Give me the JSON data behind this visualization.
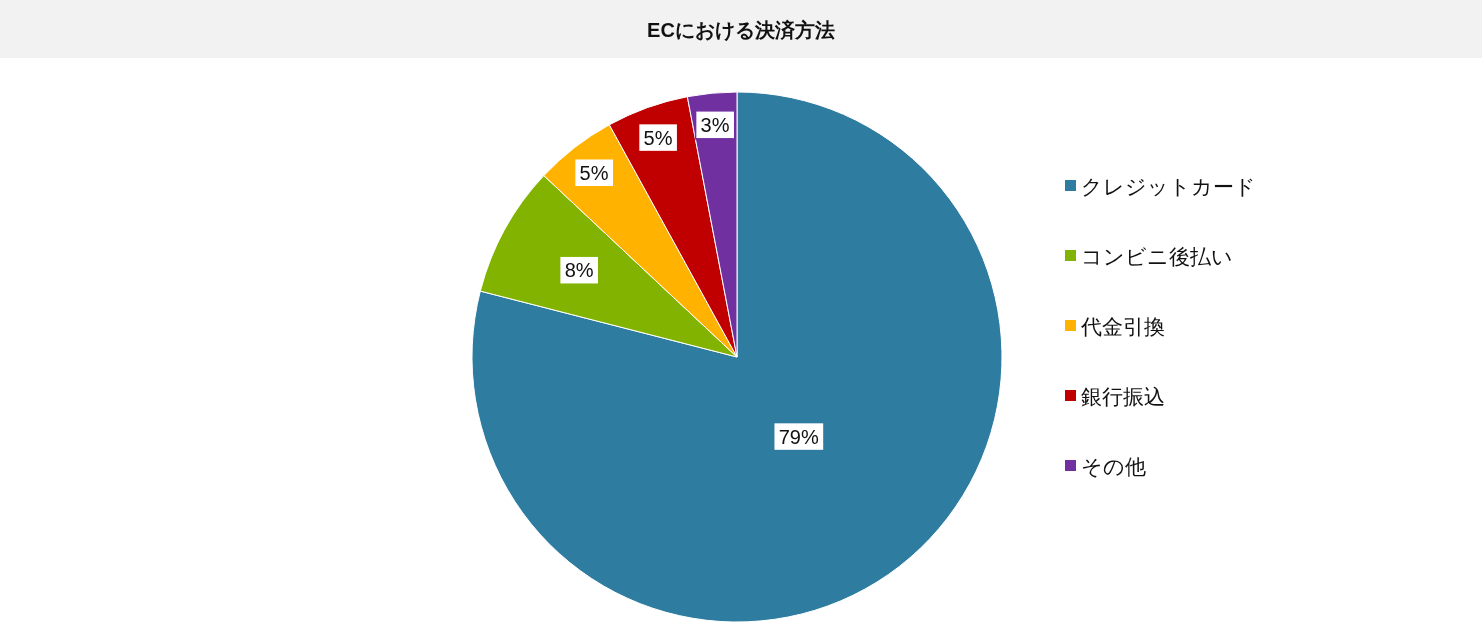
{
  "chart_data": {
    "type": "pie",
    "title": "ECにおける決済方法",
    "categories": [
      "クレジットカード",
      "コンビニ後払い",
      "代金引換",
      "銀行振込",
      "その他"
    ],
    "values": [
      79,
      8,
      5,
      5,
      3
    ],
    "colors": [
      "#2e7ca0",
      "#82b300",
      "#ffb300",
      "#c00000",
      "#7030a0"
    ],
    "value_labels": [
      "79%",
      "8%",
      "5%",
      "5%",
      "3%"
    ],
    "legend": "right"
  }
}
